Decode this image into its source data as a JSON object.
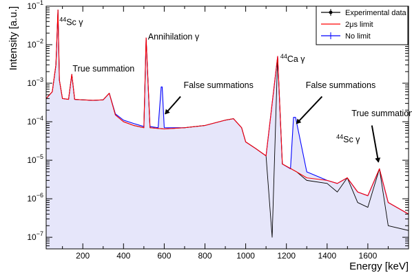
{
  "chart_data": {
    "type": "line",
    "title": "",
    "xlabel": "Energy [keV]",
    "ylabel": "Intensity [a.u.]",
    "xlim": [
      20,
      1800
    ],
    "ylim": [
      5e-08,
      0.1
    ],
    "yscale": "log",
    "grid": false,
    "legend_position": "top-right",
    "x_ticks": [
      {
        "value": 200,
        "label": "200"
      },
      {
        "value": 400,
        "label": "400"
      },
      {
        "value": 600,
        "label": "600"
      },
      {
        "value": 800,
        "label": "800"
      },
      {
        "value": 1000,
        "label": "1000"
      },
      {
        "value": 1200,
        "label": "1200"
      },
      {
        "value": 1400,
        "label": "1400"
      },
      {
        "value": 1600,
        "label": "1600"
      }
    ],
    "y_ticks": [
      {
        "value": 1e-07,
        "base": "10",
        "exp": "−7"
      },
      {
        "value": 1e-06,
        "base": "10",
        "exp": "−6"
      },
      {
        "value": 1e-05,
        "base": "10",
        "exp": "−5"
      },
      {
        "value": 0.0001,
        "base": "10",
        "exp": "−4"
      },
      {
        "value": 0.001,
        "base": "10",
        "exp": "−3"
      },
      {
        "value": 0.01,
        "base": "10",
        "exp": "−2"
      },
      {
        "value": 0.1,
        "base": "10",
        "exp": "−1"
      }
    ],
    "series": [
      {
        "name": "Experimental data",
        "color": "#000000",
        "marker": "circle",
        "x": [
          20,
          50,
          68,
          78,
          85,
          100,
          130,
          146,
          160,
          200,
          250,
          300,
          330,
          360,
          400,
          450,
          500,
          511,
          530,
          600,
          700,
          800,
          900,
          940,
          980,
          1000,
          1050,
          1100,
          1130,
          1157,
          1180,
          1250,
          1300,
          1400,
          1450,
          1499,
          1550,
          1600,
          1657,
          1700,
          1800
        ],
        "y": [
          0.0004,
          0.0006,
          0.003,
          0.08,
          0.0012,
          0.0004,
          0.00038,
          0.0017,
          0.00038,
          0.00037,
          0.00036,
          0.00037,
          0.00055,
          0.00015,
          0.0001,
          8e-05,
          7e-05,
          0.015,
          7e-05,
          6.5e-05,
          7e-05,
          8e-05,
          0.00011,
          0.00012,
          7e-05,
          3e-05,
          2e-05,
          1.3e-05,
          1e-07,
          0.005,
          8e-06,
          5e-06,
          3e-06,
          2.5e-06,
          1.5e-06,
          3.5e-06,
          8e-07,
          6e-07,
          6e-06,
          2e-07,
          1.5e-07
        ]
      },
      {
        "name": "2μs limit",
        "color": "#ff0000",
        "marker": "",
        "x": [
          20,
          50,
          68,
          78,
          85,
          100,
          130,
          146,
          160,
          200,
          250,
          300,
          330,
          360,
          400,
          450,
          500,
          511,
          530,
          600,
          700,
          800,
          900,
          940,
          980,
          1000,
          1050,
          1100,
          1157,
          1180,
          1250,
          1300,
          1400,
          1450,
          1499,
          1550,
          1600,
          1657,
          1700,
          1800
        ],
        "y": [
          0.0004,
          0.0006,
          0.003,
          0.08,
          0.0012,
          0.0004,
          0.00038,
          0.0017,
          0.00038,
          0.00037,
          0.00036,
          0.00037,
          0.00055,
          0.00015,
          0.0001,
          8e-05,
          7e-05,
          0.015,
          7e-05,
          6.5e-05,
          7e-05,
          8e-05,
          0.00011,
          0.00012,
          7e-05,
          3e-05,
          2e-05,
          1.3e-05,
          0.005,
          8e-06,
          5e-06,
          3.5e-06,
          3e-06,
          2.5e-06,
          3.5e-06,
          1.5e-06,
          1.2e-06,
          6e-06,
          8e-07,
          4e-07
        ]
      },
      {
        "name": "No limit",
        "color": "#0000ff",
        "marker": "",
        "x": [
          20,
          50,
          68,
          78,
          85,
          100,
          130,
          146,
          160,
          200,
          250,
          300,
          330,
          360,
          400,
          450,
          500,
          511,
          530,
          570,
          585,
          590,
          600,
          700,
          800,
          900,
          940,
          980,
          1000,
          1050,
          1100,
          1157,
          1180,
          1220,
          1235,
          1245,
          1300,
          1400,
          1450,
          1499,
          1550,
          1600,
          1657,
          1700,
          1800
        ],
        "y": [
          0.0004,
          0.0006,
          0.003,
          0.08,
          0.0012,
          0.0004,
          0.00038,
          0.0017,
          0.00038,
          0.00037,
          0.00036,
          0.00037,
          0.00055,
          0.00016,
          0.00011,
          9e-05,
          7.5e-05,
          0.015,
          7.5e-05,
          7e-05,
          0.0008,
          0.0008,
          7e-05,
          7e-05,
          8e-05,
          0.00011,
          0.00012,
          7e-05,
          3e-05,
          2e-05,
          1.3e-05,
          0.005,
          8e-06,
          6e-06,
          0.00013,
          0.00013,
          5e-06,
          3e-06,
          2.5e-06,
          3.5e-06,
          1.5e-06,
          1.2e-06,
          6e-06,
          8e-07,
          4e-07
        ]
      }
    ],
    "annotations": [
      {
        "parts": [
          {
            "t": "44",
            "sup": true
          },
          {
            "t": "Sc γ",
            "sup": false
          }
        ],
        "x": 85,
        "y": 0.032
      },
      {
        "parts": [
          {
            "t": "True summation",
            "sup": false
          }
        ],
        "x": 150,
        "y": 0.002
      },
      {
        "parts": [
          {
            "t": "Annihilation γ",
            "sup": false
          }
        ],
        "x": 520,
        "y": 0.0135
      },
      {
        "parts": [
          {
            "t": "False summations",
            "sup": false
          }
        ],
        "x": 695,
        "y": 0.00075
      },
      {
        "parts": [
          {
            "t": "44",
            "sup": true
          },
          {
            "t": "Ca γ",
            "sup": false
          }
        ],
        "x": 1170,
        "y": 0.0036
      },
      {
        "parts": [
          {
            "t": "False summations",
            "sup": false
          }
        ],
        "x": 1295,
        "y": 0.00075
      },
      {
        "parts": [
          {
            "t": "44",
            "sup": true
          },
          {
            "t": "Sc γ",
            "sup": false
          }
        ],
        "x": 1445,
        "y": 2.9e-05
      },
      {
        "parts": [
          {
            "t": "True summation",
            "sup": false
          }
        ],
        "x": 1520,
        "y": 0.00014
      }
    ],
    "arrows": [
      {
        "from": [
          680,
          0.00045
        ],
        "to": [
          605,
          0.00016
        ]
      },
      {
        "from": [
          1375,
          0.00045
        ],
        "to": [
          1250,
          9e-05
        ]
      },
      {
        "from": [
          1620,
          8e-05
        ],
        "to": [
          1652,
          9e-06
        ]
      }
    ]
  }
}
